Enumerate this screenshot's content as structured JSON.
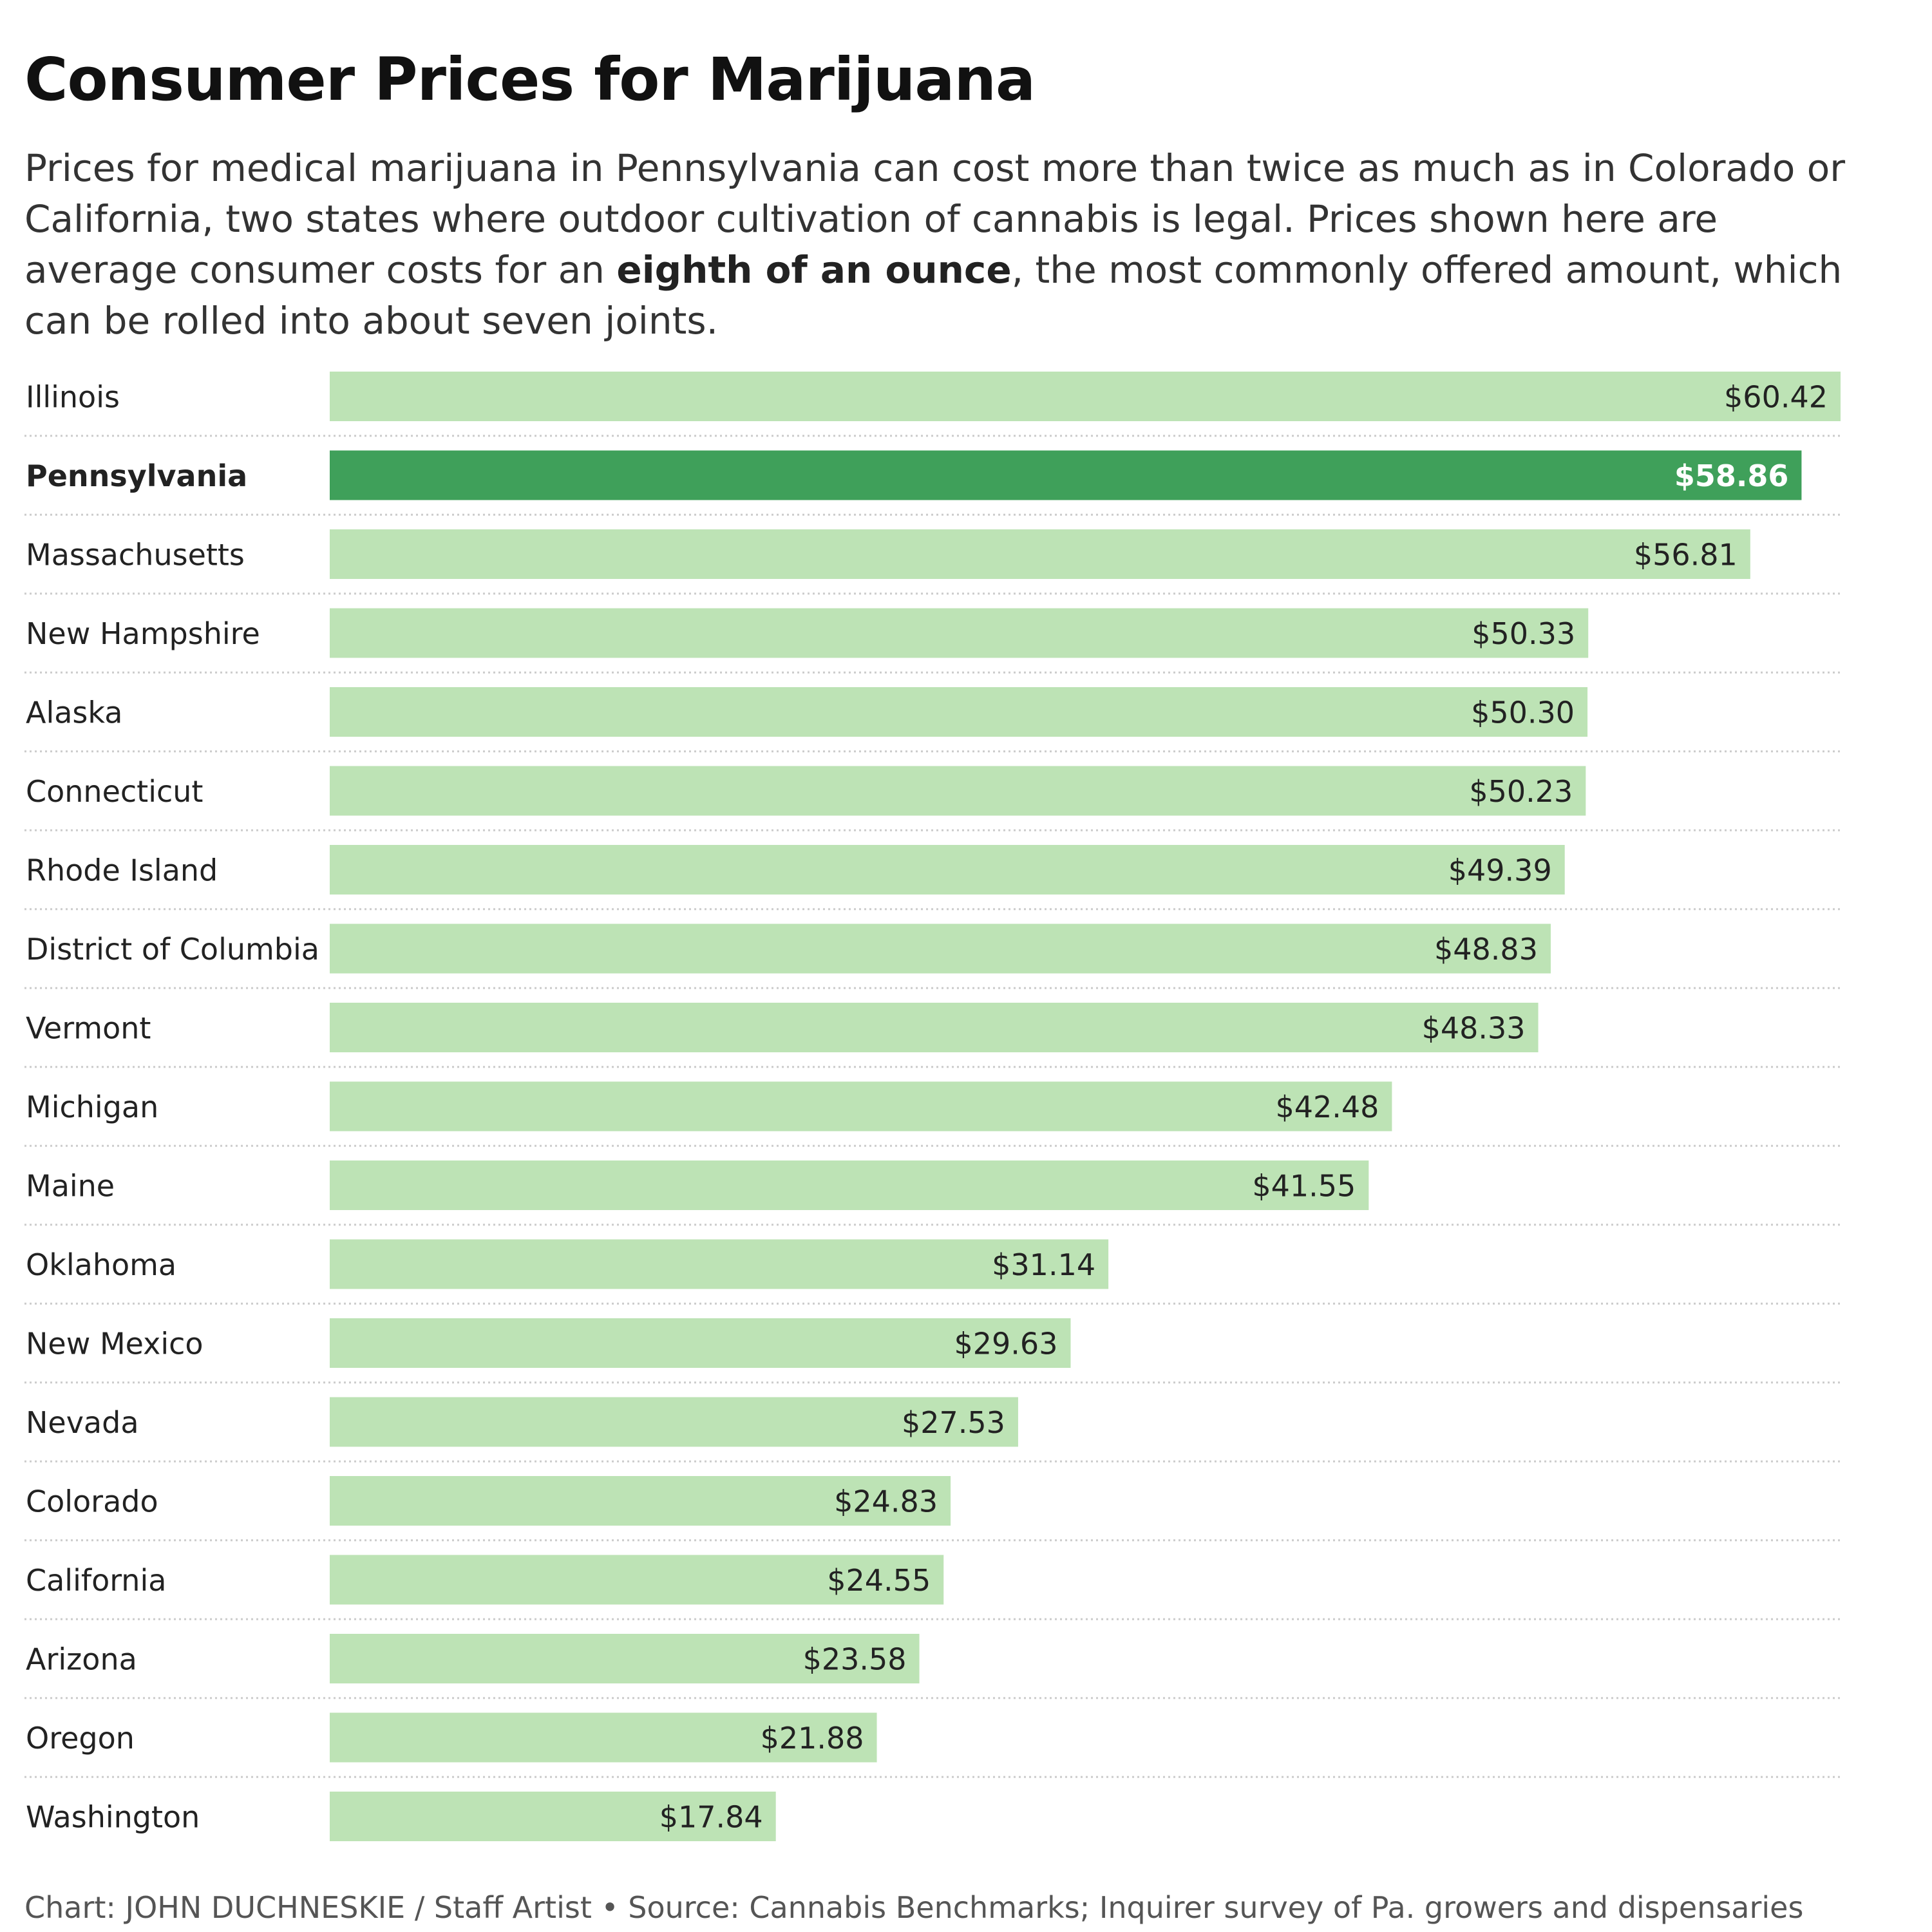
{
  "title": "Consumer Prices for Marijuana",
  "subtitle": {
    "before": "Prices for medical marijuana in Pennsylvania can cost more than twice as much as in Colorado or California, two states where outdoor cultivation of cannabis is legal. Prices shown here are average consumer costs for an ",
    "bold": "eighth of an ounce",
    "after": ", the most commonly offered amount, which can be rolled into about seven joints."
  },
  "footer": "Chart: JOHN DUCHNESKIE / Staff Artist • Source: Cannabis Benchmarks; Inquirer survey of Pa. growers and dispensaries",
  "colors": {
    "bar": "#bde3b5",
    "highlight": "#3fa05a",
    "text": "#222222",
    "highlight_text": "#ffffff",
    "rule": "#cccccc"
  },
  "chart_data": {
    "type": "bar",
    "orientation": "horizontal",
    "title": "Consumer Prices for Marijuana",
    "xlabel": "",
    "ylabel": "",
    "value_prefix": "$",
    "xlim": [
      0,
      60.42
    ],
    "grid": false,
    "highlight": "Pennsylvania",
    "categories": [
      "Illinois",
      "Pennsylvania",
      "Massachusetts",
      "New Hampshire",
      "Alaska",
      "Connecticut",
      "Rhode Island",
      "District of Columbia",
      "Vermont",
      "Michigan",
      "Maine",
      "Oklahoma",
      "New Mexico",
      "Nevada",
      "Colorado",
      "California",
      "Arizona",
      "Oregon",
      "Washington"
    ],
    "values": [
      60.42,
      58.86,
      56.81,
      50.33,
      50.3,
      50.23,
      49.39,
      48.83,
      48.33,
      42.48,
      41.55,
      31.14,
      29.63,
      27.53,
      24.83,
      24.55,
      23.58,
      21.88,
      17.84
    ],
    "labels": [
      "$60.42",
      "$58.86",
      "$56.81",
      "$50.33",
      "$50.30",
      "$50.23",
      "$49.39",
      "$48.83",
      "$48.33",
      "$42.48",
      "$41.55",
      "$31.14",
      "$29.63",
      "$27.53",
      "$24.83",
      "$24.55",
      "$23.58",
      "$21.88",
      "$17.84"
    ]
  }
}
